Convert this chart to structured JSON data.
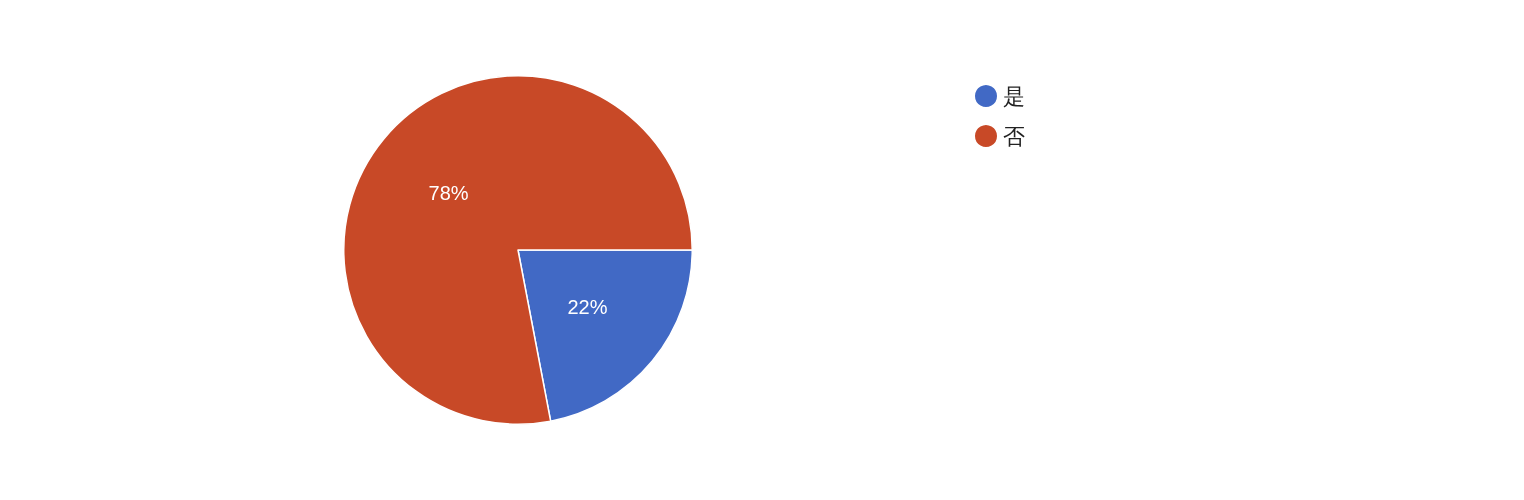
{
  "chart_data": {
    "type": "pie",
    "categories": [
      "是",
      "否"
    ],
    "values": [
      22,
      78
    ],
    "colors": [
      "#4169c5",
      "#c84927"
    ],
    "value_labels": [
      "22%",
      "78%"
    ],
    "legend": "top right"
  }
}
